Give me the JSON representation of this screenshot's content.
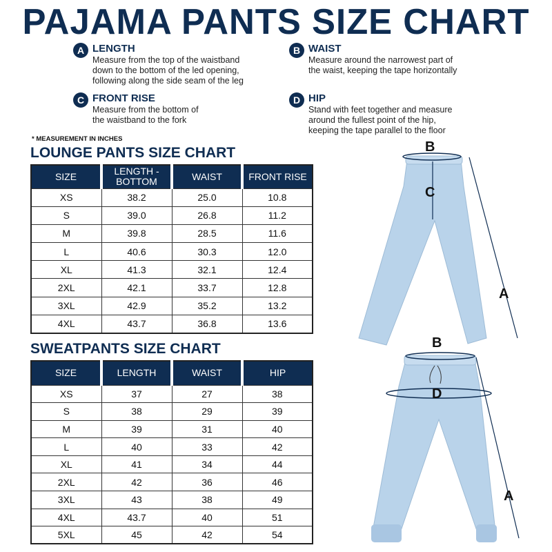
{
  "title": "PAJAMA PANTS SIZE CHART",
  "instructions": [
    {
      "letter": "A",
      "heading": "LENGTH",
      "text": [
        "Measure from the top of the waistband",
        "down to the bottom of the led opening,",
        "following along the side seam of the leg"
      ]
    },
    {
      "letter": "B",
      "heading": "WAIST",
      "text": [
        "Measure around the narrowest part of",
        "the waist, keeping the tape horizontally"
      ]
    },
    {
      "letter": "C",
      "heading": "FRONT RISE",
      "text": [
        "Measure from the bottom of",
        "the waistband to the fork"
      ]
    },
    {
      "letter": "D",
      "heading": "HIP",
      "text": [
        "Stand with feet together and measure",
        "around the fullest point of the hip,",
        "keeping the tape parallel to the floor"
      ]
    }
  ],
  "note": "* MEASUREMENT IN INCHES",
  "lounge": {
    "title": "LOUNGE PANTS SIZE CHART",
    "headers": [
      "SIZE",
      "LENGTH - BOTTOM",
      "WAIST",
      "FRONT RISE"
    ],
    "rows": [
      [
        "XS",
        "38.2",
        "25.0",
        "10.8"
      ],
      [
        "S",
        "39.0",
        "26.8",
        "11.2"
      ],
      [
        "M",
        "39.8",
        "28.5",
        "11.6"
      ],
      [
        "L",
        "40.6",
        "30.3",
        "12.0"
      ],
      [
        "XL",
        "41.3",
        "32.1",
        "12.4"
      ],
      [
        "2XL",
        "42.1",
        "33.7",
        "12.8"
      ],
      [
        "3XL",
        "42.9",
        "35.2",
        "13.2"
      ],
      [
        "4XL",
        "43.7",
        "36.8",
        "13.6"
      ]
    ]
  },
  "sweat": {
    "title": "SWEATPANTS SIZE CHART",
    "headers": [
      "SIZE",
      "LENGTH",
      "WAIST",
      "HIP"
    ],
    "rows": [
      [
        "XS",
        "37",
        "27",
        "38"
      ],
      [
        "S",
        "38",
        "29",
        "39"
      ],
      [
        "M",
        "39",
        "31",
        "40"
      ],
      [
        "L",
        "40",
        "33",
        "42"
      ],
      [
        "XL",
        "41",
        "34",
        "44"
      ],
      [
        "2XL",
        "42",
        "36",
        "46"
      ],
      [
        "3XL",
        "43",
        "38",
        "49"
      ],
      [
        "4XL",
        "43.7",
        "40",
        "51"
      ],
      [
        "5XL",
        "45",
        "42",
        "54"
      ]
    ]
  },
  "diagram_labels": {
    "b1": "B",
    "c": "C",
    "a1": "A",
    "b2": "B",
    "d": "D",
    "a2": "A"
  },
  "colors": {
    "navy": "#0f2d52",
    "pants": "#b9d3ea"
  }
}
